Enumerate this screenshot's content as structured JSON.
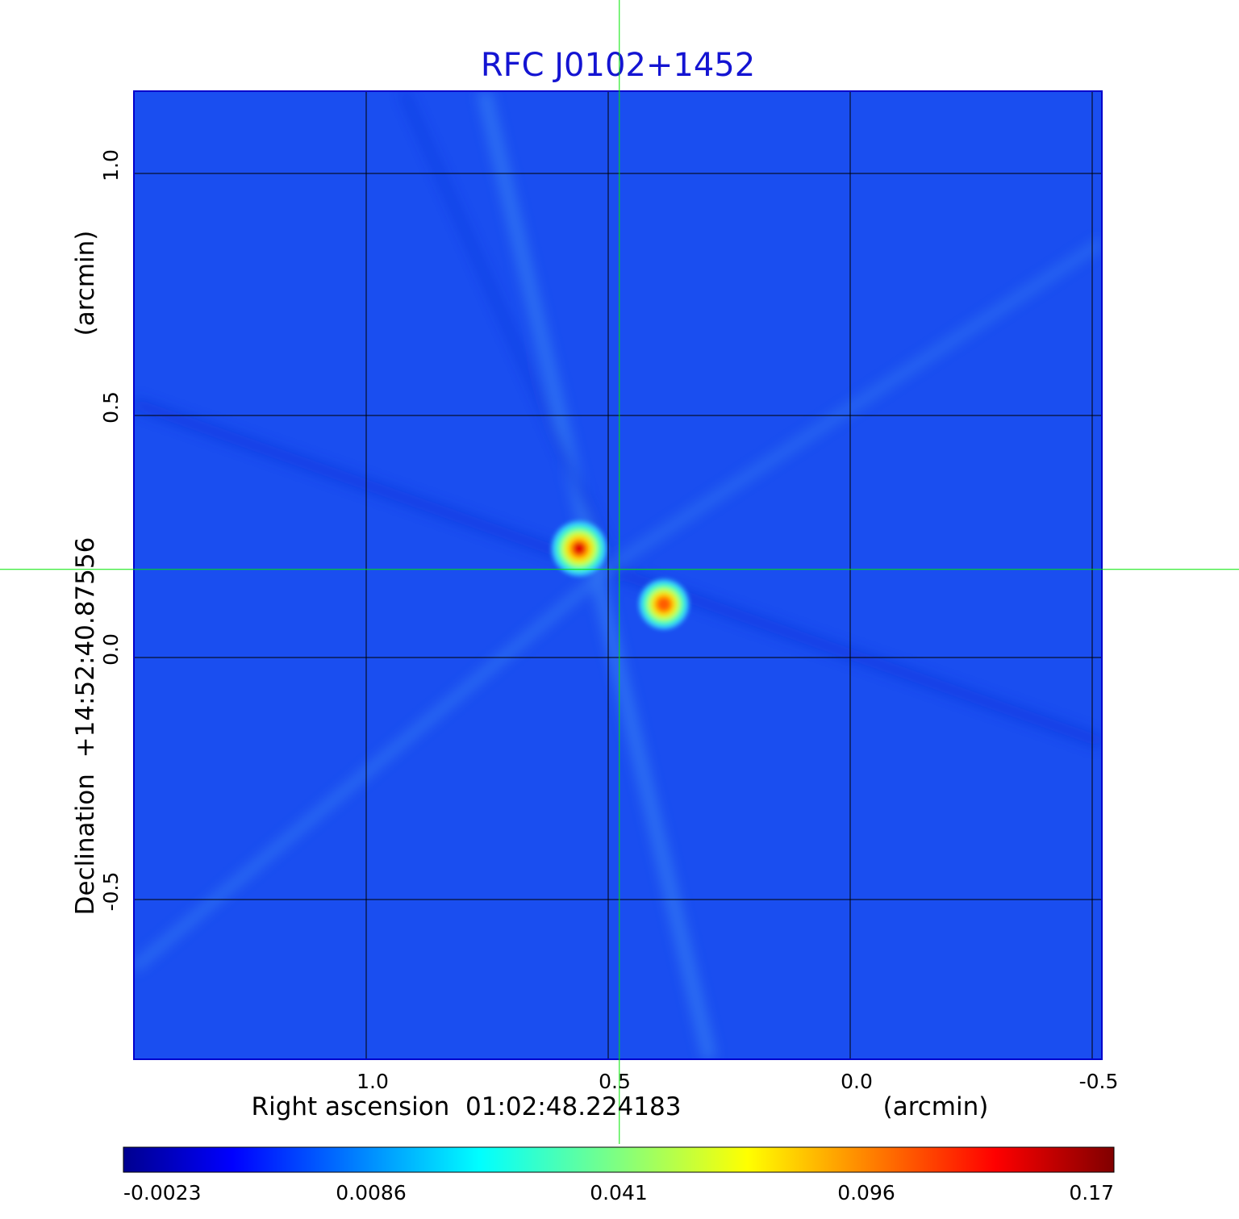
{
  "chart_data": {
    "type": "heatmap",
    "title": "RFC J0102+1452",
    "xlabel": "Right ascension  01:02:48.224183",
    "xunit": "(arcmin)",
    "ylabel": "Declination  +14:52:40.87556",
    "yunit": "(arcmin)",
    "x_ticks": [
      "1.0",
      "0.5",
      "0.0",
      "-0.5"
    ],
    "x_tick_values": [
      1.0,
      0.5,
      0.0,
      -0.5
    ],
    "y_ticks": [
      "1.0",
      "0.5",
      "0.0",
      "-0.5"
    ],
    "y_tick_values": [
      1.0,
      0.5,
      0.0,
      -0.5
    ],
    "xlim": [
      1.48,
      -0.52
    ],
    "ylim": [
      -0.83,
      1.17
    ],
    "x_reversed": true,
    "grid": true,
    "crosshair": {
      "x": 0.477,
      "y": 0.182
    },
    "colorbar": {
      "colormap": "jet",
      "ticks": [
        "-0.0023",
        "0.0086",
        "0.041",
        "0.096",
        "0.17"
      ],
      "tick_values": [
        -0.0023,
        0.0086,
        0.041,
        0.096,
        0.17
      ],
      "placement": "bottom"
    },
    "sources": [
      {
        "x": 0.56,
        "y": 0.225,
        "peak": 0.17
      },
      {
        "x": 0.385,
        "y": 0.11,
        "peak": 0.11
      }
    ],
    "colors": {
      "title": "#1414d2",
      "crosshair": "#00e600",
      "grid": "#000000",
      "background": "#1a4ef0"
    }
  }
}
